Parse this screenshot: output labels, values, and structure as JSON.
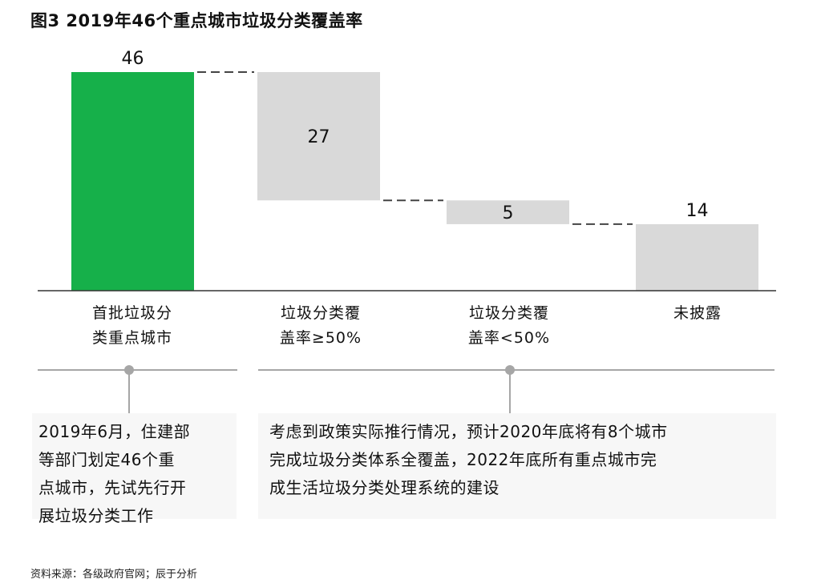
{
  "title": "图3  2019年46个重点城市垃圾分类覆盖率",
  "chart_data": {
    "type": "bar",
    "subtype": "waterfall",
    "categories": [
      "首批垃圾分类重点城市",
      "垃圾分类覆盖率≥50%",
      "垃圾分类覆盖率<50%",
      "未披露"
    ],
    "category_labels": [
      [
        "首批垃圾分",
        "类重点城市"
      ],
      [
        "垃圾分类覆",
        "盖率≥50%"
      ],
      [
        "垃圾分类覆",
        "盖率<50%"
      ],
      [
        "未披露"
      ]
    ],
    "values": [
      46,
      27,
      5,
      14
    ],
    "bar_type": [
      "total",
      "part",
      "part",
      "part"
    ],
    "colors": [
      "#16b04a",
      "#d9d9d9",
      "#d9d9d9",
      "#d9d9d9"
    ],
    "ylim": [
      0,
      46
    ],
    "grid": false
  },
  "notes": [
    {
      "lines": [
        "2019年6月，住建部",
        "等部门划定46个重",
        "点城市，先试先行开",
        "展垃圾分类工作"
      ]
    },
    {
      "lines": [
        "考虑到政策实际推行情况，预计2020年底将有8个城市",
        "完成垃圾分类体系全覆盖，2022年底所有重点城市完",
        "成生活垃圾分类处理系统的建设"
      ]
    }
  ],
  "source": "资料来源：各级政府官网；辰于分析"
}
